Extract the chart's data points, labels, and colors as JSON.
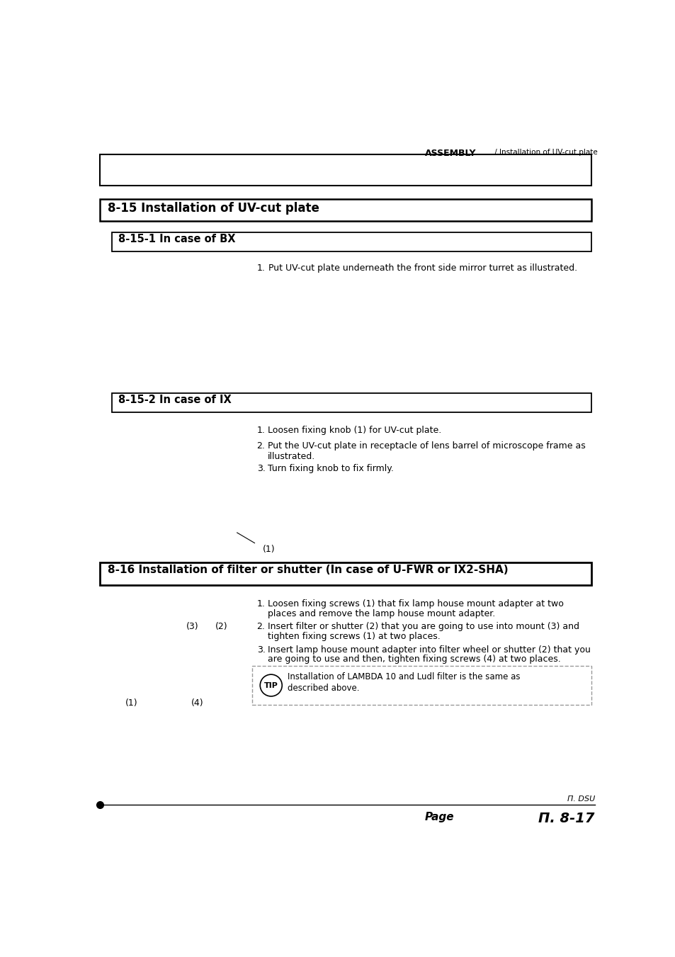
{
  "bg_color": "#ffffff",
  "page_width": 9.54,
  "page_height": 13.51,
  "header_bold": "ASSEMBLY",
  "header_small": " / Installation of UV-cut plate",
  "section_main_title": "8-15 Installation of UV-cut plate",
  "section_bx_title": "8-15-1 In case of BX",
  "section_bx_step1_num": "1.",
  "section_bx_step1_text": "Put UV-cut plate underneath the front side mirror turret as illustrated.",
  "section_ix_title": "8-15-2 In case of IX",
  "section_ix_step1_num": "1.",
  "section_ix_step1_text": "Loosen fixing knob (1) for UV-cut plate.",
  "section_ix_step2_num": "2.",
  "section_ix_step2_text": "Put the UV-cut plate in receptacle of lens barrel of microscope frame as",
  "section_ix_step2_cont": "illustrated.",
  "section_ix_step3_num": "3.",
  "section_ix_step3_text": "Turn fixing knob to fix firmly.",
  "section_ix_label": "(1)",
  "section_filter_title": "8-16 Installation of filter or shutter (In case of U-FWR or IX2-SHA)",
  "section_filter_step1_num": "1.",
  "section_filter_step1_line1": "Loosen fixing screws (1) that fix lamp house mount adapter at two",
  "section_filter_step1_line2": "places and remove the lamp house mount adapter.",
  "section_filter_step2_num": "2.",
  "section_filter_step2_line1": "Insert filter or shutter (2) that you are going to use into mount (3) and",
  "section_filter_step2_line2": "tighten fixing screws (1) at two places.",
  "section_filter_step3_num": "3.",
  "section_filter_step3_line1": "Insert lamp house mount adapter into filter wheel or shutter (2) that you",
  "section_filter_step3_line2": "are going to use and then, tighten fixing screws (4) at two places.",
  "section_filter_label3": "(3)",
  "section_filter_label2": "(2)",
  "section_filter_label1": "(1)",
  "section_filter_label4": "(4)",
  "tip_label": "TIP",
  "tip_line1": "Installation of LAMBDA 10 and Ludl filter is the same as",
  "tip_line2": "described above.",
  "footer_italic_top": "Π. DSU",
  "footer_page_label": "Page",
  "footer_page_number": "Π. 8-17"
}
